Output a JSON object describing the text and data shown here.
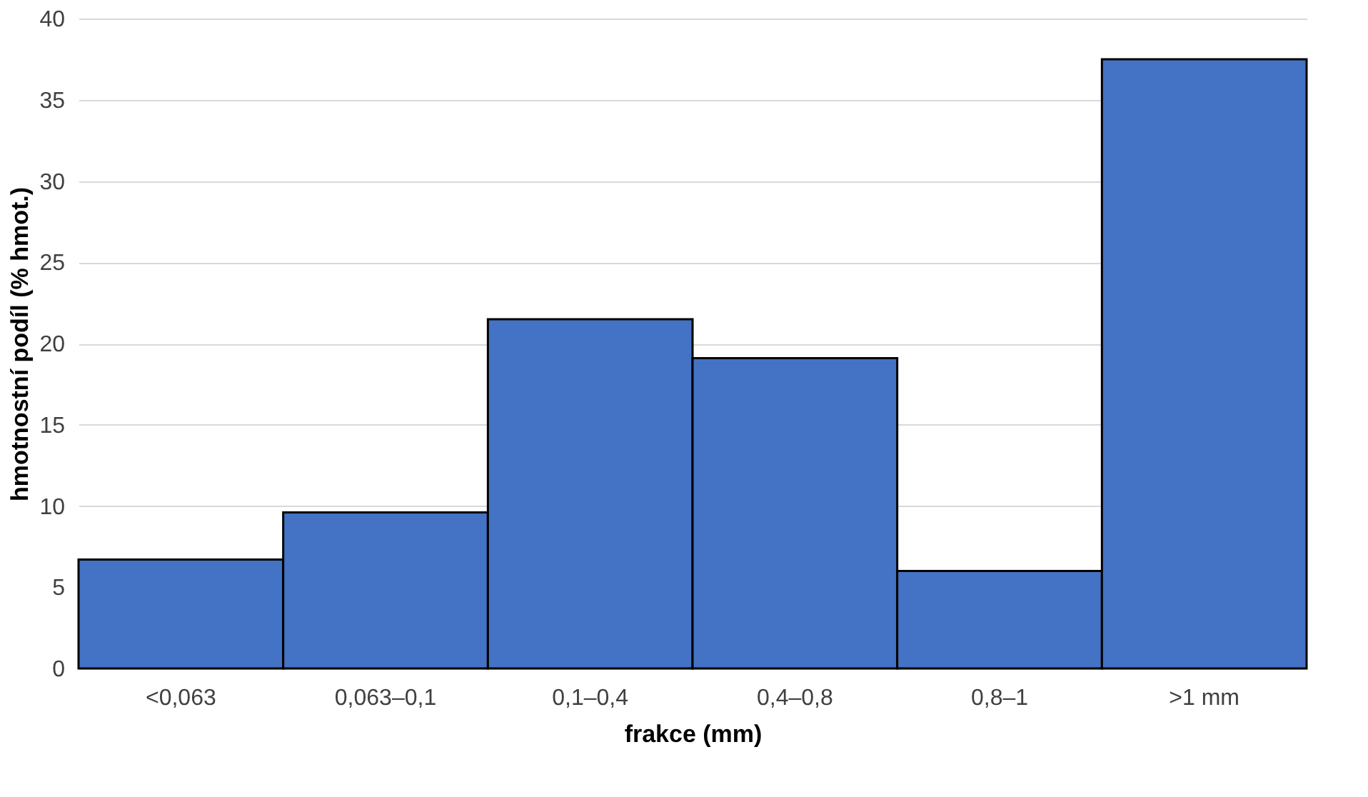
{
  "chart_data": {
    "type": "bar",
    "xlabel": "frakce (mm)",
    "ylabel": "hmotnostní podíl (% hmot.)",
    "categories": [
      "<0,063",
      "0,063–0,1",
      "0,1–0,4",
      "0,4–0,8",
      "0,8–1",
      ">1 mm"
    ],
    "values": [
      6.7,
      9.6,
      21.5,
      19.1,
      6.0,
      37.5
    ],
    "color": "#4472c4",
    "ylim": [
      0,
      40
    ],
    "yticks": [
      0,
      5,
      10,
      15,
      20,
      25,
      30,
      35,
      40
    ],
    "grid": "y"
  }
}
